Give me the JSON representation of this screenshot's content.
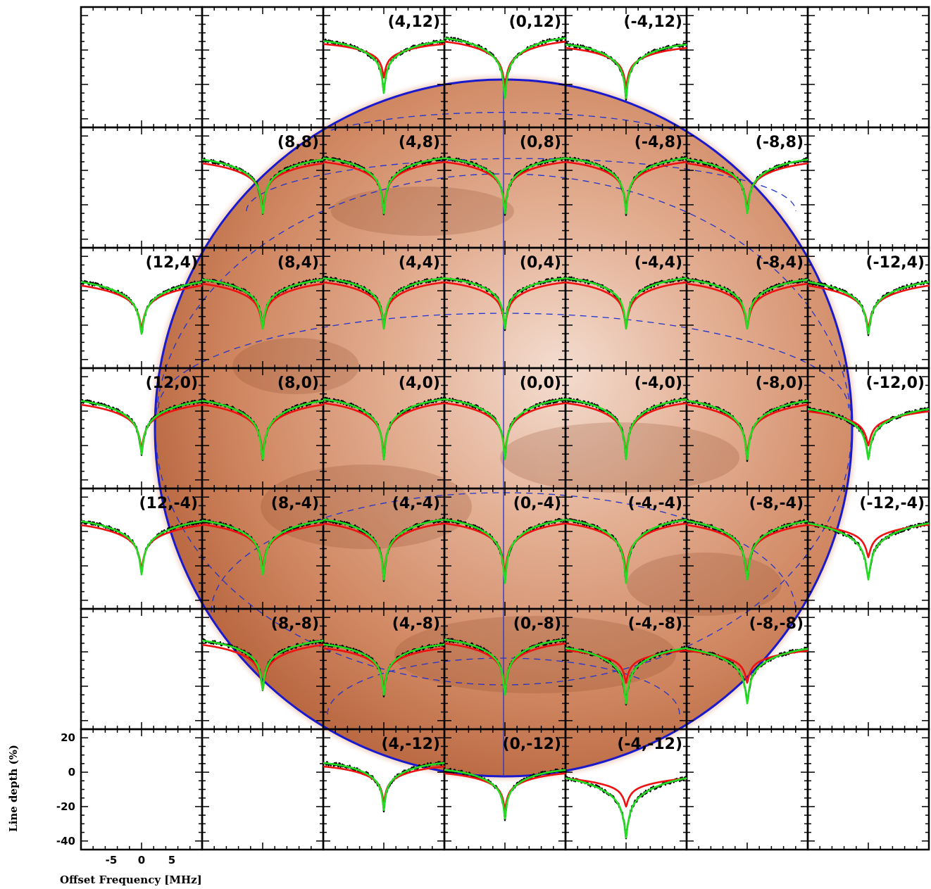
{
  "chart_data": {
    "type": "line",
    "xlabel": "Offset Frequency [MHz]",
    "ylabel": "Line depth (%)",
    "xlim": [
      -10,
      10
    ],
    "ylim": [
      -45,
      25
    ],
    "xticks": [
      "-5",
      "0",
      "5"
    ],
    "yticks": [
      "20",
      "0",
      "-20",
      "-40"
    ],
    "grid_columns": 7,
    "grid_rows": 7,
    "colors": {
      "observed": "#000000",
      "model_red": "#ee1111",
      "model_green": "#22dd22",
      "planet_disk": "#c9784e",
      "planet_outline": "#1a1acc"
    },
    "panels": [
      {
        "label": "(4,12)",
        "row": 0,
        "col": 2,
        "cont": 6,
        "red_depth": -16,
        "green_depth": -25,
        "width": 1.0
      },
      {
        "label": "(0,12)",
        "row": 0,
        "col": 3,
        "cont": 8,
        "red_depth": -22,
        "green_depth": -28,
        "width": 1.0
      },
      {
        "label": "(-4,12)",
        "row": 0,
        "col": 4,
        "cont": 4,
        "red_depth": -22,
        "green_depth": -28,
        "width": 1.0
      },
      {
        "label": "(8,8)",
        "row": 1,
        "col": 1,
        "cont": 8,
        "red_depth": -22,
        "green_depth": -25,
        "width": 1.2
      },
      {
        "label": "(4,8)",
        "row": 1,
        "col": 2,
        "cont": 8,
        "red_depth": -22,
        "green_depth": -25,
        "width": 1.0
      },
      {
        "label": "(0,8)",
        "row": 1,
        "col": 3,
        "cont": 8,
        "red_depth": -22,
        "green_depth": -25,
        "width": 1.0
      },
      {
        "label": "(-4,8)",
        "row": 1,
        "col": 4,
        "cont": 8,
        "red_depth": -22,
        "green_depth": -25,
        "width": 1.0
      },
      {
        "label": "(-8,8)",
        "row": 1,
        "col": 5,
        "cont": 8,
        "red_depth": -22,
        "green_depth": -25,
        "width": 1.2
      },
      {
        "label": "(12,4)",
        "row": 2,
        "col": 0,
        "cont": 8,
        "red_depth": -22,
        "green_depth": -25,
        "width": 1.5
      },
      {
        "label": "(8,4)",
        "row": 2,
        "col": 1,
        "cont": 8,
        "red_depth": -22,
        "green_depth": -22,
        "width": 1.2
      },
      {
        "label": "(4,4)",
        "row": 2,
        "col": 2,
        "cont": 8,
        "red_depth": -22,
        "green_depth": -22,
        "width": 1.0
      },
      {
        "label": "(0,4)",
        "row": 2,
        "col": 3,
        "cont": 8,
        "red_depth": -22,
        "green_depth": -22,
        "width": 1.0
      },
      {
        "label": "(-4,4)",
        "row": 2,
        "col": 4,
        "cont": 8,
        "red_depth": -22,
        "green_depth": -22,
        "width": 1.0
      },
      {
        "label": "(-8,4)",
        "row": 2,
        "col": 5,
        "cont": 8,
        "red_depth": -22,
        "green_depth": -22,
        "width": 1.2
      },
      {
        "label": "(-12,4)",
        "row": 2,
        "col": 6,
        "cont": 8,
        "red_depth": -22,
        "green_depth": -25,
        "width": 1.5
      },
      {
        "label": "(12,0)",
        "row": 3,
        "col": 0,
        "cont": 8,
        "red_depth": -22,
        "green_depth": -25,
        "width": 1.3
      },
      {
        "label": "(8,0)",
        "row": 3,
        "col": 1,
        "cont": 8,
        "red_depth": -25,
        "green_depth": -28,
        "width": 1.2
      },
      {
        "label": "(4,0)",
        "row": 3,
        "col": 2,
        "cont": 8,
        "red_depth": -25,
        "green_depth": -28,
        "width": 1.0
      },
      {
        "label": "(0,0)",
        "row": 3,
        "col": 3,
        "cont": 8,
        "red_depth": -25,
        "green_depth": -28,
        "width": 1.0
      },
      {
        "label": "(-4,0)",
        "row": 3,
        "col": 4,
        "cont": 8,
        "red_depth": -25,
        "green_depth": -28,
        "width": 1.0
      },
      {
        "label": "(-8,0)",
        "row": 3,
        "col": 5,
        "cont": 8,
        "red_depth": -25,
        "green_depth": -28,
        "width": 1.2
      },
      {
        "label": "(-12,0)",
        "row": 3,
        "col": 6,
        "cont": 4,
        "red_depth": -20,
        "green_depth": -28,
        "width": 1.5
      },
      {
        "label": "(12,-4)",
        "row": 4,
        "col": 0,
        "cont": 8,
        "red_depth": -22,
        "green_depth": -25,
        "width": 1.3
      },
      {
        "label": "(8,-4)",
        "row": 4,
        "col": 1,
        "cont": 8,
        "red_depth": -22,
        "green_depth": -25,
        "width": 1.2
      },
      {
        "label": "(4,-4)",
        "row": 4,
        "col": 2,
        "cont": 8,
        "red_depth": -25,
        "green_depth": -28,
        "width": 1.0
      },
      {
        "label": "(0,-4)",
        "row": 4,
        "col": 3,
        "cont": 8,
        "red_depth": -25,
        "green_depth": -30,
        "width": 1.0
      },
      {
        "label": "(-4,-4)",
        "row": 4,
        "col": 4,
        "cont": 8,
        "red_depth": -25,
        "green_depth": -30,
        "width": 1.0
      },
      {
        "label": "(-8,-4)",
        "row": 4,
        "col": 5,
        "cont": 8,
        "red_depth": -25,
        "green_depth": -28,
        "width": 1.2
      },
      {
        "label": "(-12,-4)",
        "row": 4,
        "col": 6,
        "cont": 8,
        "red_depth": -15,
        "green_depth": -28,
        "width": 1.5
      },
      {
        "label": "(8,-8)",
        "row": 5,
        "col": 1,
        "cont": 8,
        "red_depth": -22,
        "green_depth": -22,
        "width": 1.2
      },
      {
        "label": "(4,-8)",
        "row": 5,
        "col": 2,
        "cont": 5,
        "red_depth": -22,
        "green_depth": -25,
        "width": 1.0
      },
      {
        "label": "(0,-8)",
        "row": 5,
        "col": 3,
        "cont": 8,
        "red_depth": -22,
        "green_depth": -25,
        "width": 1.0
      },
      {
        "label": "(-4,-8)",
        "row": 5,
        "col": 4,
        "cont": 4,
        "red_depth": -18,
        "green_depth": -30,
        "width": 1.2
      },
      {
        "label": "(-8,-8)",
        "row": 5,
        "col": 5,
        "cont": 4,
        "red_depth": -18,
        "green_depth": -30,
        "width": 1.3
      },
      {
        "label": "(4,-12)",
        "row": 6,
        "col": 2,
        "cont": 6,
        "red_depth": -18,
        "green_depth": -22,
        "width": 1.0
      },
      {
        "label": "(0,-12)",
        "row": 6,
        "col": 3,
        "cont": 2,
        "red_depth": -22,
        "green_depth": -27,
        "width": 1.0
      },
      {
        "label": "(-4,-12)",
        "row": 6,
        "col": 4,
        "cont": 0,
        "red_depth": -20,
        "green_depth": -38,
        "width": 1.5
      }
    ]
  }
}
